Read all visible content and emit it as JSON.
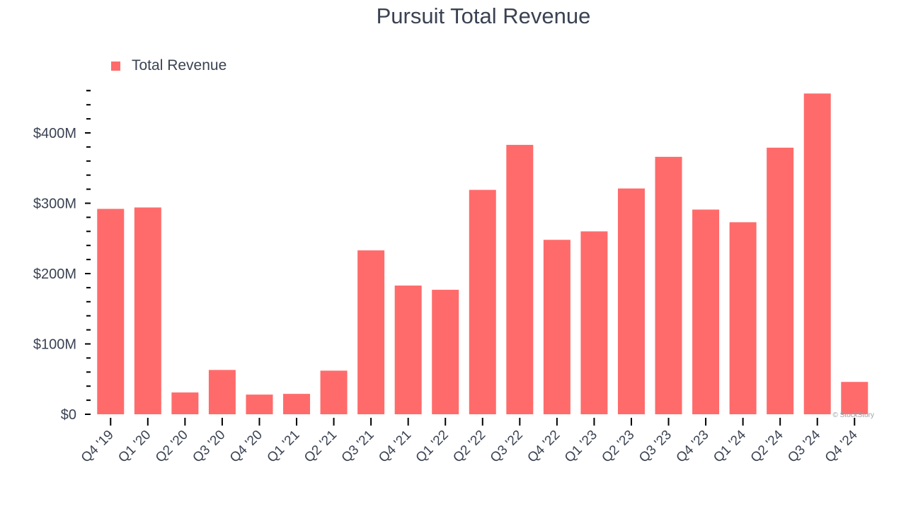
{
  "chart_data": {
    "type": "bar",
    "title": "Pursuit Total Revenue",
    "xlabel": "",
    "ylabel": "",
    "categories": [
      "Q4 '19",
      "Q1 '20",
      "Q2 '20",
      "Q3 '20",
      "Q4 '20",
      "Q1 '21",
      "Q2 '21",
      "Q3 '21",
      "Q4 '21",
      "Q1 '22",
      "Q2 '22",
      "Q3 '22",
      "Q4 '22",
      "Q1 '23",
      "Q2 '23",
      "Q3 '23",
      "Q4 '23",
      "Q1 '24",
      "Q2 '24",
      "Q3 '24",
      "Q4 '24"
    ],
    "series": [
      {
        "name": "Total Revenue",
        "color": "#ff6b6b",
        "values": [
          292,
          294,
          31,
          63,
          28,
          29,
          62,
          233,
          183,
          177,
          319,
          383,
          248,
          260,
          321,
          366,
          291,
          273,
          379,
          456,
          46
        ]
      }
    ],
    "unit": "millions USD",
    "ylim": [
      0,
      460
    ],
    "yticks": [
      0,
      100,
      200,
      300,
      400
    ],
    "ytick_labels": [
      "$0",
      "$100M",
      "$200M",
      "$300M",
      "$400M"
    ],
    "legend": "top-left",
    "grid": false,
    "watermark": "© StockStory"
  }
}
